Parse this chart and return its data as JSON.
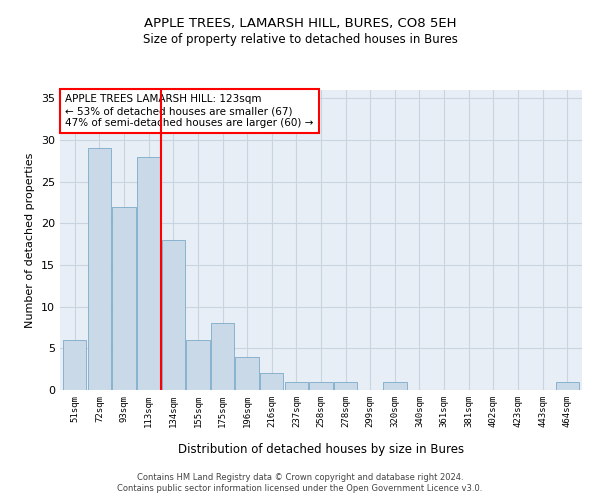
{
  "title": "APPLE TREES, LAMARSH HILL, BURES, CO8 5EH",
  "subtitle": "Size of property relative to detached houses in Bures",
  "xlabel": "Distribution of detached houses by size in Bures",
  "ylabel": "Number of detached properties",
  "bar_labels": [
    "51sqm",
    "72sqm",
    "93sqm",
    "113sqm",
    "134sqm",
    "155sqm",
    "175sqm",
    "196sqm",
    "216sqm",
    "237sqm",
    "258sqm",
    "278sqm",
    "299sqm",
    "320sqm",
    "340sqm",
    "361sqm",
    "381sqm",
    "402sqm",
    "423sqm",
    "443sqm",
    "464sqm"
  ],
  "bar_values": [
    6,
    29,
    22,
    28,
    18,
    6,
    8,
    4,
    2,
    1,
    1,
    1,
    0,
    1,
    0,
    0,
    0,
    0,
    0,
    0,
    1
  ],
  "bar_color": "#c9d9e8",
  "bar_edge_color": "#7aaac8",
  "red_line_x": 3.5,
  "annotation_title": "APPLE TREES LAMARSH HILL: 123sqm",
  "annotation_line1": "← 53% of detached houses are smaller (67)",
  "annotation_line2": "47% of semi-detached houses are larger (60) →",
  "ylim": [
    0,
    36
  ],
  "yticks": [
    0,
    5,
    10,
    15,
    20,
    25,
    30,
    35
  ],
  "grid_color": "#c8d4e0",
  "background_color": "#e8eef5",
  "footer1": "Contains HM Land Registry data © Crown copyright and database right 2024.",
  "footer2": "Contains public sector information licensed under the Open Government Licence v3.0."
}
